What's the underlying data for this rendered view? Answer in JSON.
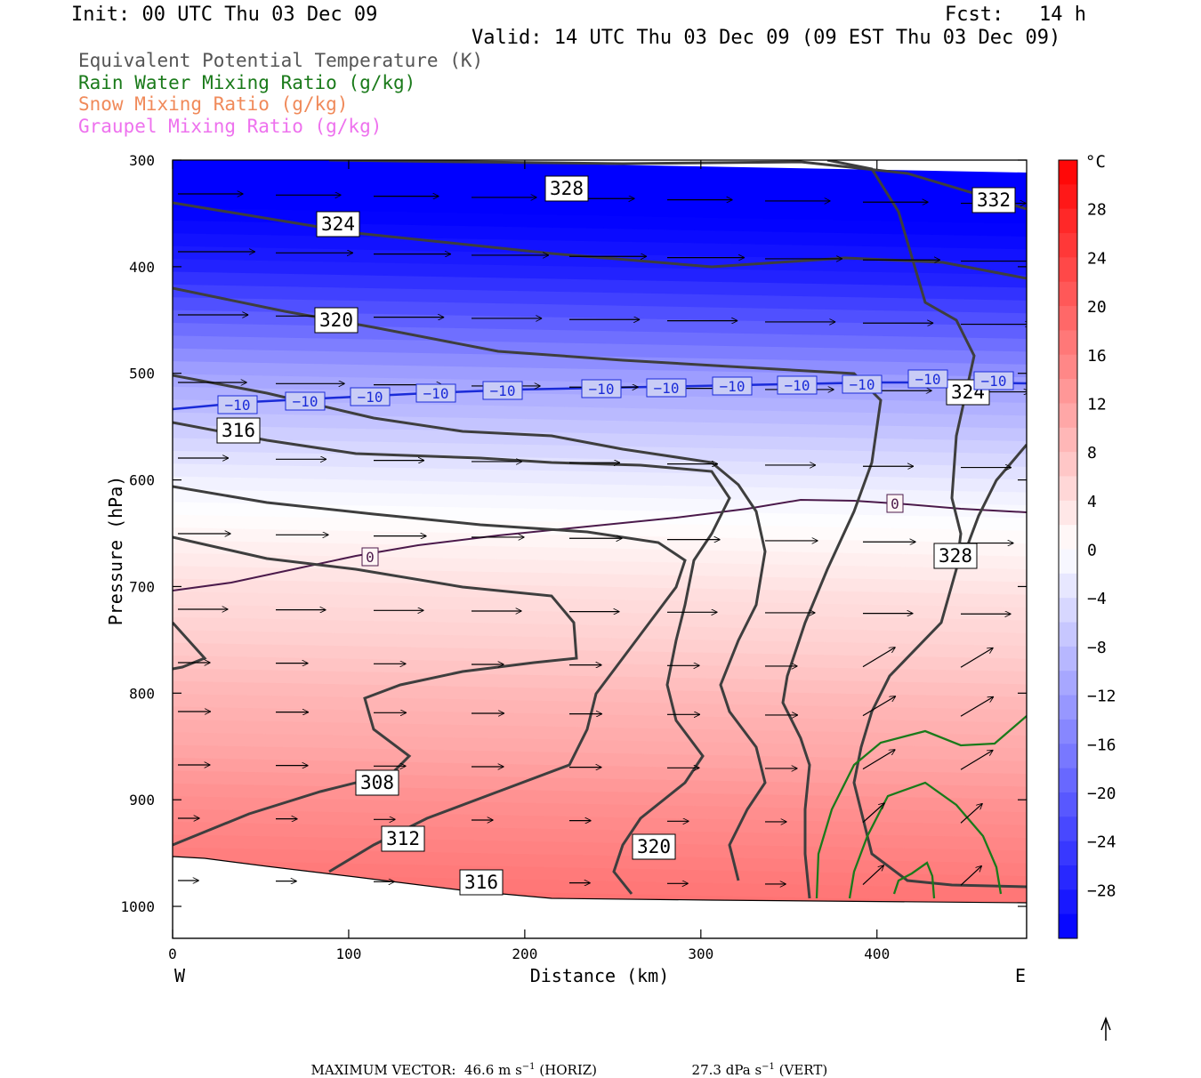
{
  "header": {
    "init": "Init: 00 UTC Thu 03 Dec 09",
    "fcst_label": "Fcst:",
    "fcst_value": "14 h",
    "valid": "Valid: 14 UTC Thu 03 Dec 09 (09 EST Thu 03 Dec 09)"
  },
  "legend": [
    {
      "label": "Equivalent Potential Temperature (K)",
      "color": "#555555"
    },
    {
      "label": "Rain Water Mixing Ratio (g/kg)",
      "color": "#1a7a1a"
    },
    {
      "label": "Snow Mixing Ratio (g/kg)",
      "color": "#f08a5a"
    },
    {
      "label": "Graupel Mixing Ratio (g/kg)",
      "color": "#ee72ee"
    }
  ],
  "chart_data": {
    "type": "cross-section",
    "xlabel": "Distance (km)",
    "ylabel": "Pressure (hPa)",
    "xlim": [
      0,
      485
    ],
    "ylim": [
      1030,
      300
    ],
    "x_ticks": [
      "0",
      "100",
      "200",
      "300",
      "400"
    ],
    "y_ticks": [
      "300",
      "400",
      "500",
      "600",
      "700",
      "800",
      "900",
      "1000"
    ],
    "west_label": "W",
    "east_label": "E",
    "temperature_colorbar": {
      "unit": "°C",
      "range": [
        -32,
        32
      ],
      "tick_labels": [
        "28",
        "24",
        "20",
        "16",
        "12",
        "8",
        "4",
        "0",
        "−4",
        "−8",
        "−12",
        "−16",
        "−20",
        "−24",
        "−28"
      ]
    },
    "theta_e_contour_labels": [
      "328",
      "332",
      "324",
      "320",
      "324",
      "316",
      "328",
      "308",
      "312",
      "320",
      "316"
    ],
    "isotherm_labels": [
      "−10",
      "−10",
      "−10",
      "−10",
      "−10",
      "−10",
      "−10",
      "−10",
      "−10",
      "−10",
      "−10",
      "−10",
      "−10",
      "0",
      "0"
    ],
    "rain_water_mixing_ratio": "contours 0.1–0.3 g/kg, lowest levels 360–480 km"
  },
  "footer": {
    "max_vector": "MAXIMUM VECTOR:  46.6 m s",
    "horiz_unit": " (HORIZ)",
    "vert": "27.3 dPa s",
    "vert_unit": " (VERT)"
  }
}
